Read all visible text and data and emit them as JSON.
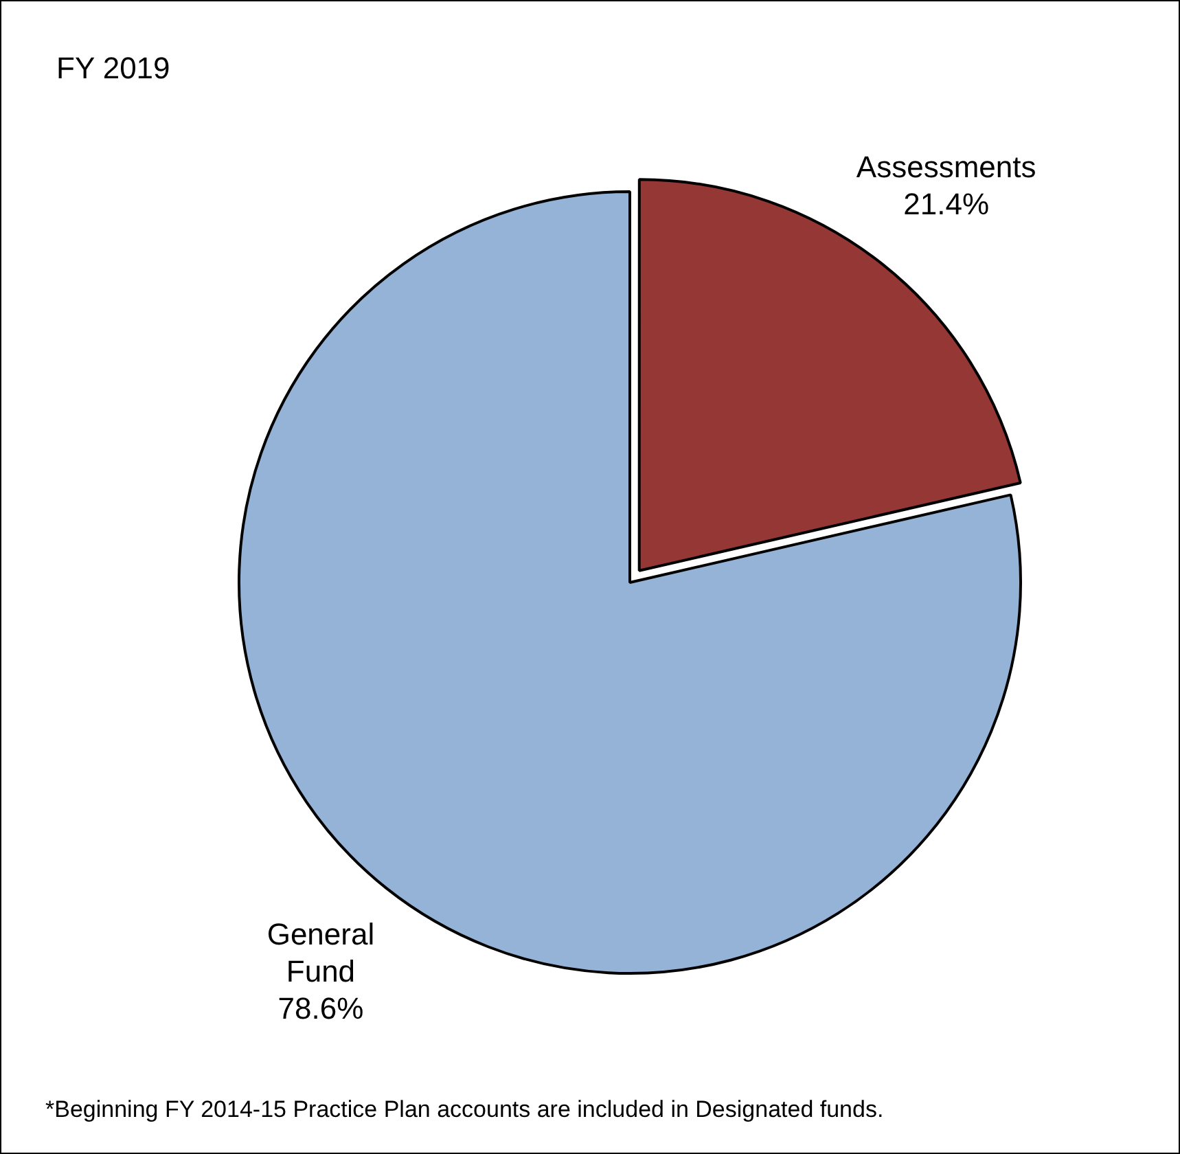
{
  "chart_data": {
    "type": "pie",
    "title": "FY 2019",
    "categories": [
      "Assessments",
      "General Fund"
    ],
    "values": [
      21.4,
      78.6
    ],
    "colors": [
      "#953735",
      "#95b3d7"
    ],
    "value_labels": [
      "21.4%",
      "78.6%"
    ],
    "legend": false,
    "annotations": [
      "*Beginning FY 2014-15 Practice Plan accounts are included in Designated funds."
    ]
  }
}
